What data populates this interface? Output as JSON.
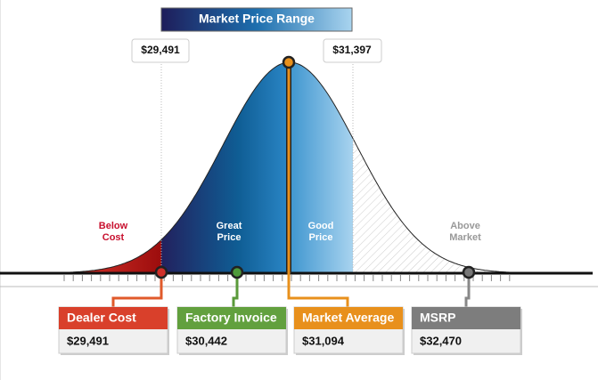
{
  "header": {
    "title": "Market Price Range"
  },
  "range": {
    "low": "$29,491",
    "high": "$31,397"
  },
  "zones": [
    {
      "lines": [
        "Below",
        "Cost"
      ]
    },
    {
      "lines": [
        "Great",
        "Price"
      ]
    },
    {
      "lines": [
        "Good",
        "Price"
      ]
    },
    {
      "lines": [
        "Above",
        "Market"
      ]
    }
  ],
  "cards": [
    {
      "label": "Dealer Cost",
      "price": "$29,491"
    },
    {
      "label": "Factory Invoice",
      "price": "$30,442"
    },
    {
      "label": "Market Average",
      "price": "$31,094"
    },
    {
      "label": "MSRP",
      "price": "$32,470"
    }
  ]
}
